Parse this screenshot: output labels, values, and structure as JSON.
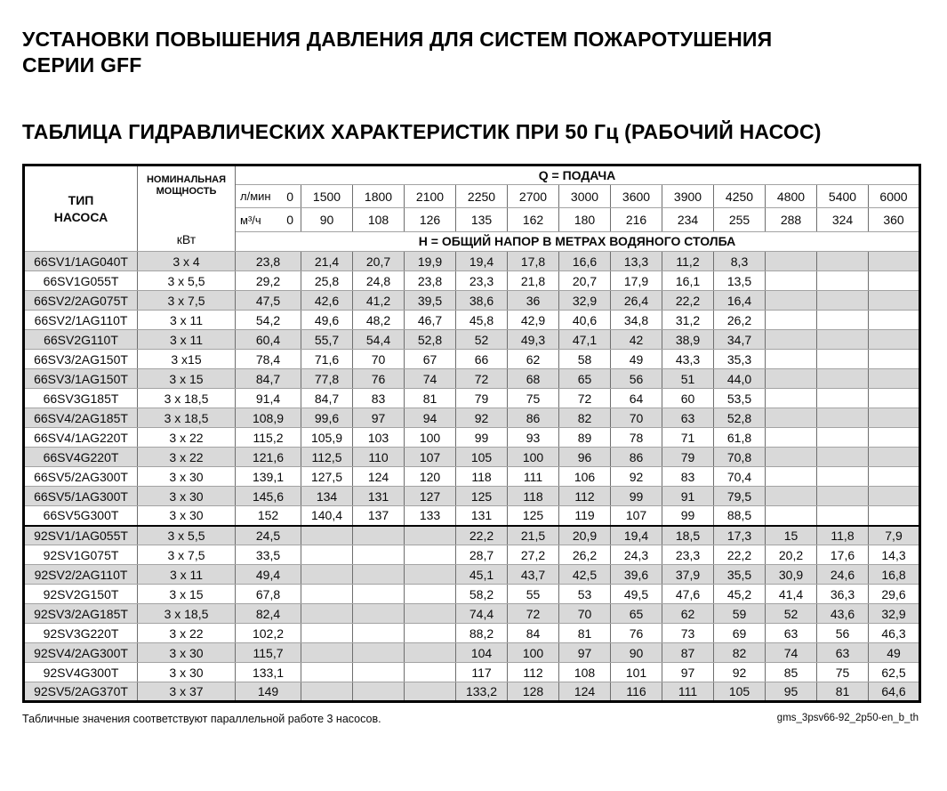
{
  "doc": {
    "title_lines": [
      "УСТАНОВКИ ПОВЫШЕНИЯ ДАВЛЕНИЯ ДЛЯ СИСТЕМ ПОЖАРОТУШЕНИЯ",
      "СЕРИИ GFF"
    ],
    "subtitle": "ТАБЛИЦА ГИДРАВЛИЧЕСКИХ ХАРАКТЕРИСТИК ПРИ 50 Гц (РАБОЧИЙ НАСОС)",
    "footnote": "Табличные значения соответствуют параллельной работе 3 насосов.",
    "doc_code": "gms_3psv66-92_2p50-en_b_th"
  },
  "table": {
    "type_header_lines": [
      "ТИП",
      "НАСОСА"
    ],
    "power_header": "НОМИНАЛЬНАЯ МОЩНОСТЬ",
    "power_unit": "кВт",
    "q_header": "Q = ПОДАЧА",
    "h_header": "Н = ОБЩИЙ НАПОР В МЕТРАХ ВОДЯНОГО СТОЛБА",
    "flow_lmin": {
      "label": "л/мин",
      "zero": "0",
      "flows": [
        "1500",
        "1800",
        "2100",
        "2250",
        "2700",
        "3000",
        "3600",
        "3900",
        "4250",
        "4800",
        "5400",
        "6000"
      ]
    },
    "flow_m3h": {
      "label": "м³/ч",
      "zero": "0",
      "flows": [
        "90",
        "108",
        "126",
        "135",
        "162",
        "180",
        "216",
        "234",
        "255",
        "288",
        "324",
        "360"
      ]
    },
    "groups": [
      {
        "series": "66SV",
        "rows": [
          {
            "type": "66SV1/1AG040T",
            "power": "3 x 4",
            "h0": "23,8",
            "h": [
              "21,4",
              "20,7",
              "19,9",
              "19,4",
              "17,8",
              "16,6",
              "13,3",
              "11,2",
              "8,3",
              "",
              "",
              ""
            ]
          },
          {
            "type": "66SV1G055T",
            "power": "3 x 5,5",
            "h0": "29,2",
            "h": [
              "25,8",
              "24,8",
              "23,8",
              "23,3",
              "21,8",
              "20,7",
              "17,9",
              "16,1",
              "13,5",
              "",
              "",
              ""
            ]
          },
          {
            "type": "66SV2/2AG075T",
            "power": "3 x 7,5",
            "h0": "47,5",
            "h": [
              "42,6",
              "41,2",
              "39,5",
              "38,6",
              "36",
              "32,9",
              "26,4",
              "22,2",
              "16,4",
              "",
              "",
              ""
            ]
          },
          {
            "type": "66SV2/1AG110T",
            "power": "3 x 11",
            "h0": "54,2",
            "h": [
              "49,6",
              "48,2",
              "46,7",
              "45,8",
              "42,9",
              "40,6",
              "34,8",
              "31,2",
              "26,2",
              "",
              "",
              ""
            ]
          },
          {
            "type": "66SV2G110T",
            "power": "3 x 11",
            "h0": "60,4",
            "h": [
              "55,7",
              "54,4",
              "52,8",
              "52",
              "49,3",
              "47,1",
              "42",
              "38,9",
              "34,7",
              "",
              "",
              ""
            ]
          },
          {
            "type": "66SV3/2AG150T",
            "power": "3 x15",
            "h0": "78,4",
            "h": [
              "71,6",
              "70",
              "67",
              "66",
              "62",
              "58",
              "49",
              "43,3",
              "35,3",
              "",
              "",
              ""
            ]
          },
          {
            "type": "66SV3/1AG150T",
            "power": "3 x 15",
            "h0": "84,7",
            "h": [
              "77,8",
              "76",
              "74",
              "72",
              "68",
              "65",
              "56",
              "51",
              "44,0",
              "",
              "",
              ""
            ]
          },
          {
            "type": "66SV3G185T",
            "power": "3 x 18,5",
            "h0": "91,4",
            "h": [
              "84,7",
              "83",
              "81",
              "79",
              "75",
              "72",
              "64",
              "60",
              "53,5",
              "",
              "",
              ""
            ]
          },
          {
            "type": "66SV4/2AG185T",
            "power": "3 x 18,5",
            "h0": "108,9",
            "h": [
              "99,6",
              "97",
              "94",
              "92",
              "86",
              "82",
              "70",
              "63",
              "52,8",
              "",
              "",
              ""
            ]
          },
          {
            "type": "66SV4/1AG220T",
            "power": "3 x 22",
            "h0": "115,2",
            "h": [
              "105,9",
              "103",
              "100",
              "99",
              "93",
              "89",
              "78",
              "71",
              "61,8",
              "",
              "",
              ""
            ]
          },
          {
            "type": "66SV4G220T",
            "power": "3 x 22",
            "h0": "121,6",
            "h": [
              "112,5",
              "110",
              "107",
              "105",
              "100",
              "96",
              "86",
              "79",
              "70,8",
              "",
              "",
              ""
            ]
          },
          {
            "type": "66SV5/2AG300T",
            "power": "3 x 30",
            "h0": "139,1",
            "h": [
              "127,5",
              "124",
              "120",
              "118",
              "111",
              "106",
              "92",
              "83",
              "70,4",
              "",
              "",
              ""
            ]
          },
          {
            "type": "66SV5/1AG300T",
            "power": "3 x 30",
            "h0": "145,6",
            "h": [
              "134",
              "131",
              "127",
              "125",
              "118",
              "112",
              "99",
              "91",
              "79,5",
              "",
              "",
              ""
            ]
          },
          {
            "type": "66SV5G300T",
            "power": "3 x 30",
            "h0": "152",
            "h": [
              "140,4",
              "137",
              "133",
              "131",
              "125",
              "119",
              "107",
              "99",
              "88,5",
              "",
              "",
              ""
            ]
          }
        ]
      },
      {
        "series": "92SV",
        "rows": [
          {
            "type": "92SV1/1AG055T",
            "power": "3 x 5,5",
            "h0": "24,5",
            "h": [
              "",
              "",
              "",
              "22,2",
              "21,5",
              "20,9",
              "19,4",
              "18,5",
              "17,3",
              "15",
              "11,8",
              "7,9"
            ]
          },
          {
            "type": "92SV1G075T",
            "power": "3 x 7,5",
            "h0": "33,5",
            "h": [
              "",
              "",
              "",
              "28,7",
              "27,2",
              "26,2",
              "24,3",
              "23,3",
              "22,2",
              "20,2",
              "17,6",
              "14,3"
            ]
          },
          {
            "type": "92SV2/2AG110T",
            "power": "3 x 11",
            "h0": "49,4",
            "h": [
              "",
              "",
              "",
              "45,1",
              "43,7",
              "42,5",
              "39,6",
              "37,9",
              "35,5",
              "30,9",
              "24,6",
              "16,8"
            ]
          },
          {
            "type": "92SV2G150T",
            "power": "3 x 15",
            "h0": "67,8",
            "h": [
              "",
              "",
              "",
              "58,2",
              "55",
              "53",
              "49,5",
              "47,6",
              "45,2",
              "41,4",
              "36,3",
              "29,6"
            ]
          },
          {
            "type": "92SV3/2AG185T",
            "power": "3 x 18,5",
            "h0": "82,4",
            "h": [
              "",
              "",
              "",
              "74,4",
              "72",
              "70",
              "65",
              "62",
              "59",
              "52",
              "43,6",
              "32,9"
            ]
          },
          {
            "type": "92SV3G220T",
            "power": "3 x 22",
            "h0": "102,2",
            "h": [
              "",
              "",
              "",
              "88,2",
              "84",
              "81",
              "76",
              "73",
              "69",
              "63",
              "56",
              "46,3"
            ]
          },
          {
            "type": "92SV4/2AG300T",
            "power": "3 x 30",
            "h0": "115,7",
            "h": [
              "",
              "",
              "",
              "104",
              "100",
              "97",
              "90",
              "87",
              "82",
              "74",
              "63",
              "49"
            ]
          },
          {
            "type": "92SV4G300T",
            "power": "3 x 30",
            "h0": "133,1",
            "h": [
              "",
              "",
              "",
              "117",
              "112",
              "108",
              "101",
              "97",
              "92",
              "85",
              "75",
              "62,5"
            ]
          },
          {
            "type": "92SV5/2AG370T",
            "power": "3 x 37",
            "h0": "149",
            "h": [
              "",
              "",
              "",
              "133,2",
              "128",
              "124",
              "116",
              "111",
              "105",
              "95",
              "81",
              "64,6"
            ]
          }
        ]
      }
    ]
  }
}
